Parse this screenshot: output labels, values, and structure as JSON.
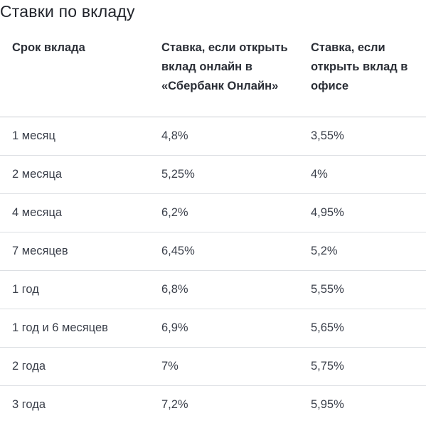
{
  "title": "Ставки по вкладу",
  "table": {
    "headers": [
      "Срок вклада",
      "Ставка, если открыть вклад онлайн в «Сбербанк Онлайн»",
      "Ставка, если открыть вклад в офисе"
    ],
    "rows": [
      [
        "1 месяц",
        "4,8%",
        "3,55%"
      ],
      [
        "2 месяца",
        "5,25%",
        "4%"
      ],
      [
        "4 месяца",
        "6,2%",
        "4,95%"
      ],
      [
        "7 месяцев",
        "6,45%",
        "5,2%"
      ],
      [
        "1 год",
        "6,8%",
        "5,55%"
      ],
      [
        "1 год и 6 месяцев",
        "6,9%",
        "5,65%"
      ],
      [
        "2 года",
        "7%",
        "5,75%"
      ],
      [
        "3 года",
        "7,2%",
        "5,95%"
      ]
    ]
  }
}
